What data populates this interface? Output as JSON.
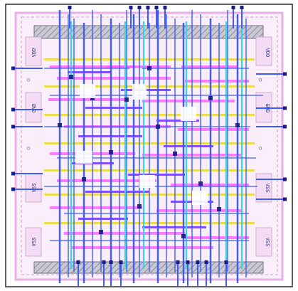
{
  "layout": {
    "rail_labels": {
      "top_left": "VDD",
      "top_right": "VDD",
      "mid_left": "GND",
      "mid_right": "GND",
      "low_left": "VSS",
      "low_right": "VSS",
      "bottom_left": "VSS",
      "bottom_right": "VSS"
    },
    "colors": {
      "background": "#ffffff",
      "outline": "#2a2a2a",
      "boundary": "#e8b0e8",
      "hatch_band": "#9a9aa8",
      "metal1": "#ff66ff",
      "metal2": "#3d5cff",
      "metal3": "#36d6e8",
      "poly": "#7a3cff",
      "rail_yellow": "#e8d93a",
      "via": "#1a1a80"
    }
  }
}
